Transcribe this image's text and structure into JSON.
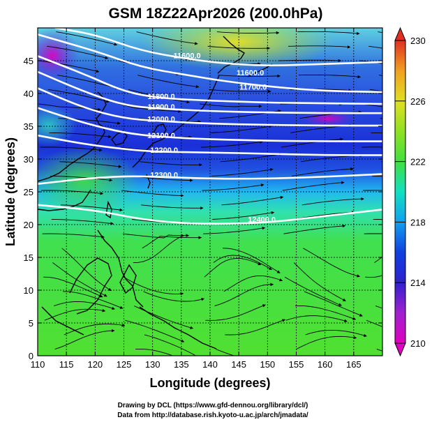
{
  "title": "GSM 18Z22Apr2026 (200.0hPa)",
  "x_axis": {
    "label": "Longitude (degrees)",
    "min": 110,
    "max": 170,
    "ticks": [
      110,
      115,
      120,
      125,
      130,
      135,
      140,
      145,
      150,
      155,
      160,
      165
    ]
  },
  "y_axis": {
    "label": "Latitude  (degrees)",
    "min": 0,
    "max": 50,
    "ticks": [
      0,
      5,
      10,
      15,
      20,
      25,
      30,
      35,
      40,
      45
    ]
  },
  "colorbar": {
    "min": 210,
    "max": 230,
    "ticks": [
      210,
      214,
      218,
      222,
      226,
      230
    ],
    "colors": [
      "#e000c0",
      "#a020d0",
      "#3020d0",
      "#1040e0",
      "#10a0f0",
      "#10e0c0",
      "#40e040",
      "#90e020",
      "#e0e020",
      "#f0a020",
      "#e03020"
    ]
  },
  "contour_labels": [
    {
      "text": "11600.0",
      "lon": 136,
      "lat": 45.8
    },
    {
      "text": "11600.0",
      "lon": 147,
      "lat": 43.2
    },
    {
      "text": "11700.0",
      "lon": 147.5,
      "lat": 41.0
    },
    {
      "text": "11800.0",
      "lon": 131.5,
      "lat": 39.6
    },
    {
      "text": "11900.0",
      "lon": 131.5,
      "lat": 38.0
    },
    {
      "text": "12000.0",
      "lon": 131.5,
      "lat": 36.1
    },
    {
      "text": "12100.0",
      "lon": 131.5,
      "lat": 33.6
    },
    {
      "text": "12200.0",
      "lon": 132,
      "lat": 31.4
    },
    {
      "text": "12300.0",
      "lon": 132,
      "lat": 27.6
    },
    {
      "text": "12400.0",
      "lon": 149,
      "lat": 20.8
    }
  ],
  "contours": [
    {
      "level": 11600,
      "points": [
        [
          113,
          50
        ],
        [
          120,
          49
        ],
        [
          128,
          46.5
        ],
        [
          136,
          45.3
        ],
        [
          142,
          44.6
        ],
        [
          150,
          44.2
        ],
        [
          160,
          44.5
        ],
        [
          170,
          44.8
        ]
      ]
    },
    {
      "level": 11700,
      "points": [
        [
          110,
          49
        ],
        [
          120,
          46.5
        ],
        [
          128,
          44
        ],
        [
          136,
          42.8
        ],
        [
          143,
          41.8
        ],
        [
          152,
          40.9
        ],
        [
          160,
          40.4
        ],
        [
          170,
          40.2
        ]
      ]
    },
    {
      "level": 11800,
      "points": [
        [
          110,
          45.7
        ],
        [
          118,
          43
        ],
        [
          125,
          40.3
        ],
        [
          131,
          39.3
        ],
        [
          140,
          38.9
        ],
        [
          150,
          38.6
        ],
        [
          160,
          38.5
        ],
        [
          170,
          38.4
        ]
      ]
    },
    {
      "level": 11900,
      "points": [
        [
          110,
          43.3
        ],
        [
          118,
          40.3
        ],
        [
          125,
          38.2
        ],
        [
          131,
          37.7
        ],
        [
          140,
          37.3
        ],
        [
          150,
          37.1
        ],
        [
          160,
          37.0
        ],
        [
          170,
          37.0
        ]
      ]
    },
    {
      "level": 12000,
      "points": [
        [
          110,
          40.8
        ],
        [
          118,
          37.8
        ],
        [
          125,
          36.2
        ],
        [
          131,
          35.8
        ],
        [
          140,
          35.4
        ],
        [
          150,
          35.2
        ],
        [
          160,
          35.1
        ],
        [
          170,
          35.1
        ]
      ]
    },
    {
      "level": 12100,
      "points": [
        [
          110,
          37.8
        ],
        [
          118,
          35.5
        ],
        [
          125,
          34.0
        ],
        [
          131,
          33.4
        ],
        [
          140,
          33.0
        ],
        [
          150,
          32.8
        ],
        [
          160,
          32.7
        ],
        [
          170,
          32.7
        ]
      ]
    },
    {
      "level": 12200,
      "points": [
        [
          110,
          33.6
        ],
        [
          118,
          32.3
        ],
        [
          125,
          31.5
        ],
        [
          131,
          31.1
        ],
        [
          140,
          31.0
        ],
        [
          150,
          30.8
        ],
        [
          160,
          30.6
        ],
        [
          170,
          30.6
        ]
      ]
    },
    {
      "level": 12300,
      "points": [
        [
          110,
          26.2
        ],
        [
          118,
          27
        ],
        [
          125,
          27.4
        ],
        [
          131,
          27.3
        ],
        [
          140,
          27.0
        ],
        [
          150,
          27.0
        ],
        [
          160,
          27.3
        ],
        [
          170,
          27.7
        ]
      ]
    },
    {
      "level": 12400,
      "points": [
        [
          110,
          23.0
        ],
        [
          120,
          22.2
        ],
        [
          128,
          20.8
        ],
        [
          135,
          20.2
        ],
        [
          142,
          20.1
        ],
        [
          150,
          20.3
        ],
        [
          160,
          21.3
        ],
        [
          170,
          22.3
        ]
      ]
    }
  ],
  "credits": {
    "line1": "Drawing by DCL (https://www.gfd-dennou.org/library/dcl/)",
    "line2": "Data from http://database.rish.kyoto-u.ac.jp/arch/jmadata/"
  }
}
